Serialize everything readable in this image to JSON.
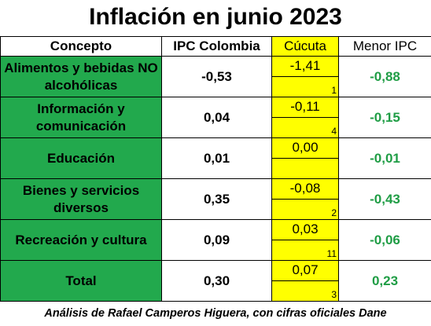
{
  "header": {
    "title": "Inflación en junio 2023"
  },
  "table": {
    "columns": [
      "Concepto",
      "IPC Colombia",
      "Cúcuta",
      "Menor IPC"
    ],
    "rows": [
      {
        "concepto": "Alimentos y bebidas NO alcohólicas",
        "ipc": "-0,53",
        "cucuta": "-1,41",
        "rank": "1",
        "menor": "-0,88"
      },
      {
        "concepto": "Información y comunicación",
        "ipc": "0,04",
        "cucuta": "-0,11",
        "rank": "4",
        "menor": "-0,15"
      },
      {
        "concepto": "Educación",
        "ipc": "0,01",
        "cucuta": "0,00",
        "rank": null,
        "menor": "-0,01"
      },
      {
        "concepto": "Bienes y servicios diversos",
        "ipc": "0,35",
        "cucuta": "-0,08",
        "rank": "2",
        "menor": "-0,43"
      },
      {
        "concepto": "Recreación y cultura",
        "ipc": "0,09",
        "cucuta": "0,03",
        "rank": "11",
        "menor": "-0,06"
      },
      {
        "concepto": "Total",
        "ipc": "0,30",
        "cucuta": "0,07",
        "rank": "3",
        "menor": "0,23"
      }
    ]
  },
  "footer": {
    "note": "Análisis de Rafael Camperos Higuera, con cifras oficiales Dane"
  }
}
